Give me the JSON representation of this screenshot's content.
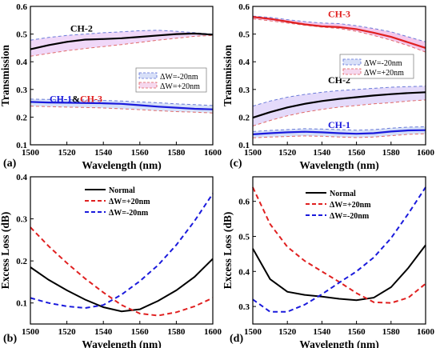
{
  "chart_data": [
    {
      "panel": "(a)",
      "type": "line",
      "xlabel": "Wavelength (nm)",
      "ylabel": "Transmission",
      "xlim": [
        1500,
        1600
      ],
      "ylim": [
        0.1,
        0.6
      ],
      "xticks": [
        1500,
        1520,
        1540,
        1560,
        1580,
        1600
      ],
      "yticks": [
        0.1,
        0.2,
        0.3,
        0.4,
        0.5,
        0.6
      ],
      "legend": {
        "position": "center-right",
        "entries": [
          {
            "label": "ΔW=-20nm",
            "color": "#5b6fd6",
            "style": "dashed"
          },
          {
            "label": "ΔW=+20nm",
            "color": "#e05a5a",
            "style": "dashed"
          }
        ]
      },
      "annotations": [
        {
          "parts": [
            {
              "text": "CH-2",
              "color": "#000000"
            }
          ],
          "x": 1528,
          "y": 0.52
        },
        {
          "parts": [
            {
              "text": "CH-1",
              "color": "#1a1adc"
            },
            {
              "text": "&",
              "color": "#000000"
            },
            {
              "text": "CH-3",
              "color": "#e02020"
            }
          ],
          "x": 1525,
          "y": 0.266
        }
      ],
      "groups": [
        {
          "x": [
            1500,
            1510,
            1520,
            1530,
            1540,
            1550,
            1560,
            1570,
            1580,
            1590,
            1600
          ],
          "main": [
            0.445,
            0.46,
            0.472,
            0.48,
            0.482,
            0.485,
            0.49,
            0.495,
            0.5,
            0.502,
            0.498
          ],
          "minus": [
            0.478,
            0.488,
            0.495,
            0.5,
            0.505,
            0.508,
            0.512,
            0.514,
            0.51,
            0.505,
            0.5
          ],
          "plus": [
            0.42,
            0.43,
            0.44,
            0.448,
            0.455,
            0.462,
            0.47,
            0.478,
            0.485,
            0.492,
            0.495
          ],
          "main_color": "#000000",
          "fill": "#f0d8f8"
        },
        {
          "x": [
            1500,
            1510,
            1520,
            1530,
            1540,
            1550,
            1560,
            1570,
            1580,
            1590,
            1600
          ],
          "main": [
            0.255,
            0.253,
            0.252,
            0.251,
            0.25,
            0.248,
            0.243,
            0.238,
            0.234,
            0.23,
            0.228
          ],
          "minus": [
            0.265,
            0.264,
            0.263,
            0.262,
            0.26,
            0.258,
            0.255,
            0.252,
            0.248,
            0.245,
            0.242
          ],
          "plus": [
            0.24,
            0.238,
            0.236,
            0.235,
            0.233,
            0.23,
            0.227,
            0.223,
            0.22,
            0.218,
            0.215
          ],
          "main_color": "#1a1adc",
          "fill": "#d8e2f8"
        }
      ]
    },
    {
      "panel": "(b)",
      "type": "line",
      "xlabel": "Wavelength (nm)",
      "ylabel": "Excess Loss (dB)",
      "xlim": [
        1500,
        1600
      ],
      "ylim": [
        0.05,
        0.4
      ],
      "xticks": [
        1500,
        1520,
        1540,
        1560,
        1580,
        1600
      ],
      "yticks": [
        0.1,
        0.2,
        0.3,
        0.4
      ],
      "legend": {
        "position": "top-center",
        "entries": [
          {
            "label": "Normal",
            "color": "#000000",
            "style": "solid"
          },
          {
            "label": "ΔW=+20nm",
            "color": "#e02020",
            "style": "dashed"
          },
          {
            "label": "ΔW=-20nm",
            "color": "#1a1adc",
            "style": "dashed"
          }
        ]
      },
      "x": [
        1500,
        1510,
        1520,
        1530,
        1540,
        1550,
        1560,
        1570,
        1580,
        1590,
        1600
      ],
      "series": [
        {
          "name": "Normal",
          "color": "#000000",
          "style": "solid",
          "values": [
            0.185,
            0.155,
            0.13,
            0.108,
            0.09,
            0.08,
            0.085,
            0.105,
            0.13,
            0.162,
            0.205
          ]
        },
        {
          "name": "ΔW=+20nm",
          "color": "#e02020",
          "style": "dashed",
          "values": [
            0.28,
            0.235,
            0.195,
            0.158,
            0.125,
            0.095,
            0.075,
            0.07,
            0.078,
            0.092,
            0.112
          ]
        },
        {
          "name": "ΔW=-20nm",
          "color": "#1a1adc",
          "style": "dashed",
          "values": [
            0.112,
            0.1,
            0.092,
            0.088,
            0.095,
            0.12,
            0.152,
            0.19,
            0.238,
            0.295,
            0.36
          ]
        }
      ]
    },
    {
      "panel": "(c)",
      "type": "line",
      "xlabel": "Wavelength (nm)",
      "ylabel": "Transmission",
      "xlim": [
        1500,
        1600
      ],
      "ylim": [
        0.1,
        0.6
      ],
      "xticks": [
        1500,
        1520,
        1540,
        1560,
        1580,
        1600
      ],
      "yticks": [
        0.1,
        0.2,
        0.3,
        0.4,
        0.5,
        0.6
      ],
      "legend": {
        "position": "center-right",
        "entries": [
          {
            "label": "ΔW=-20nm",
            "color": "#5b6fd6",
            "style": "dashed"
          },
          {
            "label": "ΔW=+20nm",
            "color": "#e05a5a",
            "style": "dashed"
          }
        ]
      },
      "annotations": [
        {
          "parts": [
            {
              "text": "CH-3",
              "color": "#e02020"
            }
          ],
          "x": 1550,
          "y": 0.572
        },
        {
          "parts": [
            {
              "text": "CH-2",
              "color": "#000000"
            }
          ],
          "x": 1550,
          "y": 0.334
        },
        {
          "parts": [
            {
              "text": "CH-1",
              "color": "#1a1adc"
            }
          ],
          "x": 1550,
          "y": 0.172
        }
      ],
      "groups": [
        {
          "x": [
            1500,
            1510,
            1520,
            1530,
            1540,
            1550,
            1560,
            1570,
            1580,
            1590,
            1600
          ],
          "main": [
            0.562,
            0.555,
            0.545,
            0.535,
            0.528,
            0.525,
            0.518,
            0.505,
            0.49,
            0.47,
            0.45
          ],
          "minus": [
            0.565,
            0.56,
            0.552,
            0.545,
            0.54,
            0.538,
            0.53,
            0.52,
            0.508,
            0.49,
            0.472
          ],
          "plus": [
            0.555,
            0.548,
            0.54,
            0.532,
            0.525,
            0.52,
            0.51,
            0.495,
            0.478,
            0.458,
            0.435
          ],
          "main_color": "#e02020",
          "fill": "#f4c8ec"
        },
        {
          "x": [
            1500,
            1510,
            1520,
            1530,
            1540,
            1550,
            1560,
            1570,
            1580,
            1590,
            1600
          ],
          "main": [
            0.198,
            0.218,
            0.235,
            0.248,
            0.258,
            0.266,
            0.272,
            0.278,
            0.283,
            0.287,
            0.29
          ],
          "minus": [
            0.24,
            0.258,
            0.272,
            0.282,
            0.29,
            0.296,
            0.3,
            0.304,
            0.308,
            0.31,
            0.312
          ],
          "plus": [
            0.168,
            0.188,
            0.205,
            0.218,
            0.228,
            0.236,
            0.242,
            0.248,
            0.252,
            0.258,
            0.262
          ],
          "main_color": "#000000",
          "fill": "#e4dafa"
        },
        {
          "x": [
            1500,
            1510,
            1520,
            1530,
            1540,
            1550,
            1560,
            1570,
            1580,
            1590,
            1600
          ],
          "main": [
            0.138,
            0.142,
            0.145,
            0.147,
            0.145,
            0.142,
            0.14,
            0.142,
            0.148,
            0.152,
            0.153
          ],
          "minus": [
            0.148,
            0.152,
            0.155,
            0.158,
            0.157,
            0.155,
            0.153,
            0.155,
            0.16,
            0.164,
            0.165
          ],
          "plus": [
            0.125,
            0.128,
            0.13,
            0.132,
            0.131,
            0.128,
            0.126,
            0.128,
            0.133,
            0.138,
            0.14
          ],
          "main_color": "#1a1adc",
          "fill": "#d6e0f8"
        }
      ]
    },
    {
      "panel": "(d)",
      "type": "line",
      "xlabel": "Wavelength (nm)",
      "ylabel": "Excess Loss (dB)",
      "xlim": [
        1500,
        1600
      ],
      "ylim": [
        0.25,
        0.67
      ],
      "xticks": [
        1500,
        1520,
        1540,
        1560,
        1580,
        1600
      ],
      "yticks": [
        0.3,
        0.4,
        0.5,
        0.6
      ],
      "legend": {
        "position": "top-center",
        "entries": [
          {
            "label": "Normal",
            "color": "#000000",
            "style": "solid"
          },
          {
            "label": "ΔW=+20nm",
            "color": "#e02020",
            "style": "dashed"
          },
          {
            "label": "ΔW=-20nm",
            "color": "#1a1adc",
            "style": "dashed"
          }
        ]
      },
      "x": [
        1500,
        1510,
        1520,
        1530,
        1540,
        1550,
        1560,
        1570,
        1580,
        1590,
        1600
      ],
      "series": [
        {
          "name": "Normal",
          "color": "#000000",
          "style": "solid",
          "values": [
            0.465,
            0.378,
            0.342,
            0.333,
            0.328,
            0.322,
            0.318,
            0.325,
            0.355,
            0.41,
            0.475
          ]
        },
        {
          "name": "ΔW=+20nm",
          "color": "#e02020",
          "style": "dashed",
          "values": [
            0.64,
            0.535,
            0.47,
            0.43,
            0.4,
            0.37,
            0.338,
            0.312,
            0.31,
            0.325,
            0.365
          ]
        },
        {
          "name": "ΔW=-20nm",
          "color": "#1a1adc",
          "style": "dashed",
          "values": [
            0.32,
            0.285,
            0.285,
            0.305,
            0.335,
            0.368,
            0.4,
            0.44,
            0.495,
            0.565,
            0.64
          ]
        }
      ]
    }
  ]
}
